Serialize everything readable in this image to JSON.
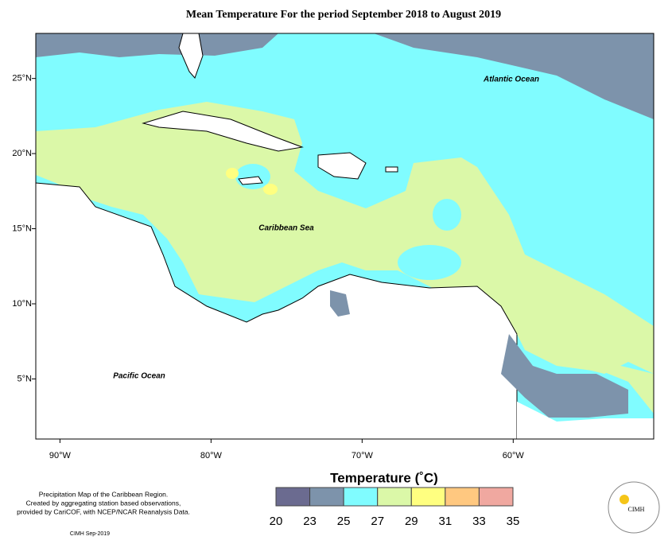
{
  "title": "Mean Temperature For the period September 2018 to August 2019",
  "map": {
    "xlim": [
      -91.6,
      -50.7
    ],
    "ylim": [
      1,
      28
    ],
    "lon_ticks": [
      {
        "value": -90,
        "label": "90°W"
      },
      {
        "value": -80,
        "label": "80°W"
      },
      {
        "value": -70,
        "label": "70°W"
      },
      {
        "value": -60,
        "label": "60°W"
      }
    ],
    "lat_ticks": [
      {
        "value": 5,
        "label": "5°N"
      },
      {
        "value": 10,
        "label": "10°N"
      },
      {
        "value": 15,
        "label": "15°N"
      },
      {
        "value": 20,
        "label": "20°N"
      },
      {
        "value": 25,
        "label": "25°N"
      }
    ],
    "ocean_labels": [
      "Atlantic Ocean",
      "Caribbean Sea",
      "Pacific Ocean"
    ]
  },
  "legend": {
    "title": "Temperature (˚C)",
    "bins": [
      20,
      23,
      25,
      27,
      29,
      31,
      33,
      35
    ],
    "colors": [
      "#6b6b90",
      "#7d93ab",
      "#80fcff",
      "#dbf8a8",
      "#ffff80",
      "#ffc880",
      "#f0a8a0"
    ]
  },
  "notes": [
    "Precipitation Map of the Caribbean Region.",
    "Created by aggregating station based observations,",
    "provided by CariCOF, with NCEP/NCAR Reanalysis Data."
  ],
  "credit": "CIMH Sep-2019",
  "logo": "CIMH"
}
